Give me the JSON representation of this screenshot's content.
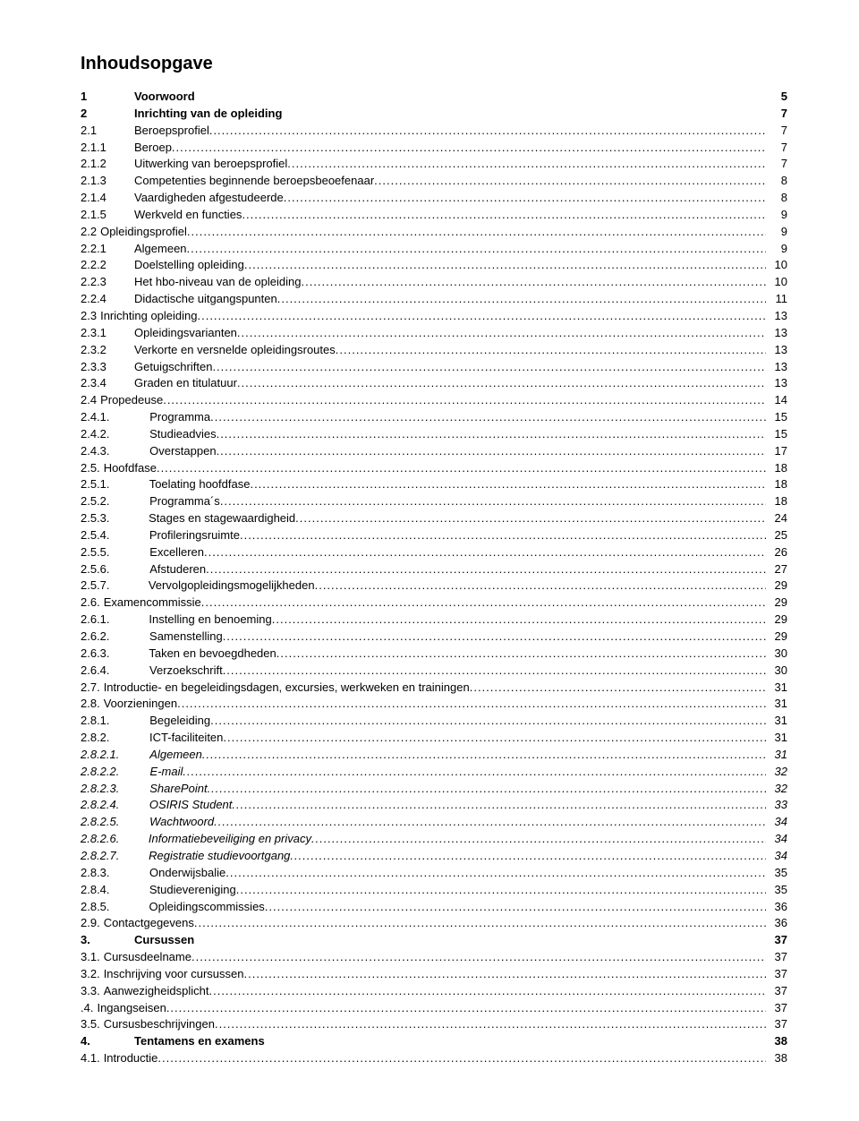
{
  "title": "Inhoudsopgave",
  "dots": "......................................................................................................................................................................................................................................................................",
  "layout": {
    "numColWidth": 60,
    "numColWidthDeep": 70,
    "leadGap": 14
  },
  "entries": [
    {
      "num": "1",
      "label": "Voorwoord",
      "page": "5",
      "bold": true,
      "dotted": false,
      "indent": 0
    },
    {
      "num": "2",
      "label": "Inrichting van de opleiding",
      "page": "7",
      "bold": true,
      "dotted": false,
      "indent": 0
    },
    {
      "num": "2.1",
      "label": "Beroepsprofiel",
      "page": "7",
      "dotted": true,
      "indent": 0
    },
    {
      "num": "2.1.1",
      "label": "Beroep",
      "page": "7",
      "dotted": true,
      "indent": 0
    },
    {
      "num": "2.1.2",
      "label": "Uitwerking van beroepsprofiel",
      "page": "7",
      "dotted": true,
      "indent": 0
    },
    {
      "num": "2.1.3",
      "label": "Competenties beginnende beroepsbeoefenaar",
      "page": "8",
      "dotted": true,
      "indent": 0
    },
    {
      "num": "2.1.4",
      "label": "Vaardigheden afgestudeerde",
      "page": "8",
      "dotted": true,
      "indent": 0
    },
    {
      "num": "2.1.5",
      "label": "Werkveld en functies",
      "page": "9",
      "dotted": true,
      "indent": 0
    },
    {
      "num": "2.2",
      "label": "Opleidingsprofiel",
      "page": "9",
      "dotted": true,
      "indent": 0,
      "tight": true
    },
    {
      "num": "2.2.1",
      "label": "Algemeen",
      "page": "9",
      "dotted": true,
      "indent": 0
    },
    {
      "num": "2.2.2",
      "label": "Doelstelling opleiding",
      "page": "10",
      "dotted": true,
      "indent": 0
    },
    {
      "num": "2.2.3",
      "label": "Het hbo-niveau van de opleiding",
      "page": "10",
      "dotted": true,
      "indent": 0
    },
    {
      "num": "2.2.4",
      "label": "Didactische uitgangspunten",
      "page": "11",
      "dotted": true,
      "indent": 0
    },
    {
      "num": "2.3",
      "label": "Inrichting opleiding",
      "page": "13",
      "dotted": true,
      "indent": 0,
      "tight": true
    },
    {
      "num": "2.3.1",
      "label": "Opleidingsvarianten",
      "page": "13",
      "dotted": true,
      "indent": 0
    },
    {
      "num": "2.3.2",
      "label": "Verkorte en versnelde opleidingsroutes",
      "page": "13",
      "dotted": true,
      "indent": 0
    },
    {
      "num": "2.3.3",
      "label": "Getuigschriften",
      "page": "13",
      "dotted": true,
      "indent": 0
    },
    {
      "num": "2.3.4",
      "label": "Graden en titulatuur",
      "page": "13",
      "dotted": true,
      "indent": 0
    },
    {
      "num": "2.4",
      "label": "Propedeuse",
      "page": "14",
      "dotted": true,
      "indent": 0,
      "tight": true
    },
    {
      "num": "2.4.1.",
      "label": "Programma",
      "page": "15",
      "dotted": true,
      "indent": 1
    },
    {
      "num": "2.4.2.",
      "label": "Studieadvies",
      "page": "15",
      "dotted": true,
      "indent": 1
    },
    {
      "num": "2.4.3.",
      "label": "Overstappen",
      "page": "17",
      "dotted": true,
      "indent": 1
    },
    {
      "num": "2.5.",
      "label": "Hoofdfase",
      "page": "18",
      "dotted": true,
      "indent": 0,
      "tight": true
    },
    {
      "num": "2.5.1.",
      "label": "Toelating hoofdfase",
      "page": "18",
      "dotted": true,
      "indent": 1
    },
    {
      "num": "2.5.2.",
      "label": "Programma´s",
      "page": "18",
      "dotted": true,
      "indent": 1
    },
    {
      "num": "2.5.3.",
      "label": "Stages en stagewaardigheid",
      "page": "24",
      "dotted": true,
      "indent": 1
    },
    {
      "num": "2.5.4.",
      "label": "Profileringsruimte",
      "page": "25",
      "dotted": true,
      "indent": 1
    },
    {
      "num": "2.5.5.",
      "label": "Excelleren",
      "page": "26",
      "dotted": true,
      "indent": 1
    },
    {
      "num": "2.5.6.",
      "label": "Afstuderen",
      "page": "27",
      "dotted": true,
      "indent": 1
    },
    {
      "num": "2.5.7.",
      "label": "Vervolgopleidingsmogelijkheden",
      "page": "29",
      "dotted": true,
      "indent": 1
    },
    {
      "num": "2.6.",
      "label": "Examencommissie",
      "page": "29",
      "dotted": true,
      "indent": 0,
      "tight": true
    },
    {
      "num": "2.6.1.",
      "label": "Instelling en benoeming",
      "page": "29",
      "dotted": true,
      "indent": 1
    },
    {
      "num": "2.6.2.",
      "label": "Samenstelling",
      "page": "29",
      "dotted": true,
      "indent": 1
    },
    {
      "num": "2.6.3.",
      "label": "Taken en bevoegdheden",
      "page": "30",
      "dotted": true,
      "indent": 1
    },
    {
      "num": "2.6.4.",
      "label": "Verzoekschrift",
      "page": "30",
      "dotted": true,
      "indent": 1
    },
    {
      "num": "2.7.",
      "label": "Introductie- en begeleidingsdagen, excursies, werkweken en trainingen",
      "page": "31",
      "dotted": true,
      "indent": 0,
      "tight": true
    },
    {
      "num": "2.8.",
      "label": "Voorzieningen",
      "page": "31",
      "dotted": true,
      "indent": 0,
      "tight": true
    },
    {
      "num": "2.8.1.",
      "label": "Begeleiding",
      "page": "31",
      "dotted": true,
      "indent": 1
    },
    {
      "num": "2.8.2.",
      "label": "ICT-faciliteiten",
      "page": "31",
      "dotted": true,
      "indent": 1
    },
    {
      "num": "2.8.2.1.",
      "label": "Algemeen",
      "page": "31",
      "dotted": true,
      "indent": 1,
      "italic": true
    },
    {
      "num": "2.8.2.2.",
      "label": "E-mail",
      "page": "32",
      "dotted": true,
      "indent": 1,
      "italic": true
    },
    {
      "num": "2.8.2.3.",
      "label": "SharePoint",
      "page": "32",
      "dotted": true,
      "indent": 1,
      "italic": true
    },
    {
      "num": "2.8.2.4.",
      "label": "OSIRIS Student",
      "page": "33",
      "dotted": true,
      "indent": 1,
      "italic": true
    },
    {
      "num": "2.8.2.5.",
      "label": "Wachtwoord",
      "page": "34",
      "dotted": true,
      "indent": 1,
      "italic": true
    },
    {
      "num": "2.8.2.6.",
      "label": "Informatiebeveiliging en privacy",
      "page": "34",
      "dotted": true,
      "indent": 1,
      "italic": true
    },
    {
      "num": "2.8.2.7.",
      "label": "Registratie studievoortgang",
      "page": "34",
      "dotted": true,
      "indent": 1,
      "italic": true
    },
    {
      "num": "2.8.3.",
      "label": "Onderwijsbalie",
      "page": "35",
      "dotted": true,
      "indent": 1
    },
    {
      "num": "2.8.4.",
      "label": "Studievereniging",
      "page": "35",
      "dotted": true,
      "indent": 1
    },
    {
      "num": "2.8.5.",
      "label": "Opleidingscommissies",
      "page": "36",
      "dotted": true,
      "indent": 1
    },
    {
      "num": "2.9.",
      "label": "Contactgegevens",
      "page": "36",
      "dotted": true,
      "indent": 0,
      "tight": true
    },
    {
      "num": "3.",
      "label": "Cursussen",
      "page": "37",
      "bold": true,
      "dotted": false,
      "indent": 0
    },
    {
      "num": "3.1.",
      "label": "Cursusdeelname",
      "page": "37",
      "dotted": true,
      "indent": 0,
      "tight": true
    },
    {
      "num": "3.2.",
      "label": "Inschrijving voor cursussen",
      "page": "37",
      "dotted": true,
      "indent": 0,
      "tight": true
    },
    {
      "num": "3.3.",
      "label": "Aanwezigheidsplicht",
      "page": "37",
      "dotted": true,
      "indent": 0,
      "tight": true
    },
    {
      "num": ".4.",
      "label": "Ingangseisen",
      "page": "37",
      "dotted": true,
      "indent": 0,
      "tight": true
    },
    {
      "num": "3.5.",
      "label": "Cursusbeschrijvingen",
      "page": "37",
      "dotted": true,
      "indent": 0,
      "tight": true
    },
    {
      "num": "4.",
      "label": "Tentamens en examens",
      "page": "38",
      "bold": true,
      "dotted": false,
      "indent": 0
    },
    {
      "num": "4.1.",
      "label": "Introductie",
      "page": "38",
      "dotted": true,
      "indent": 0,
      "tight": true
    }
  ]
}
